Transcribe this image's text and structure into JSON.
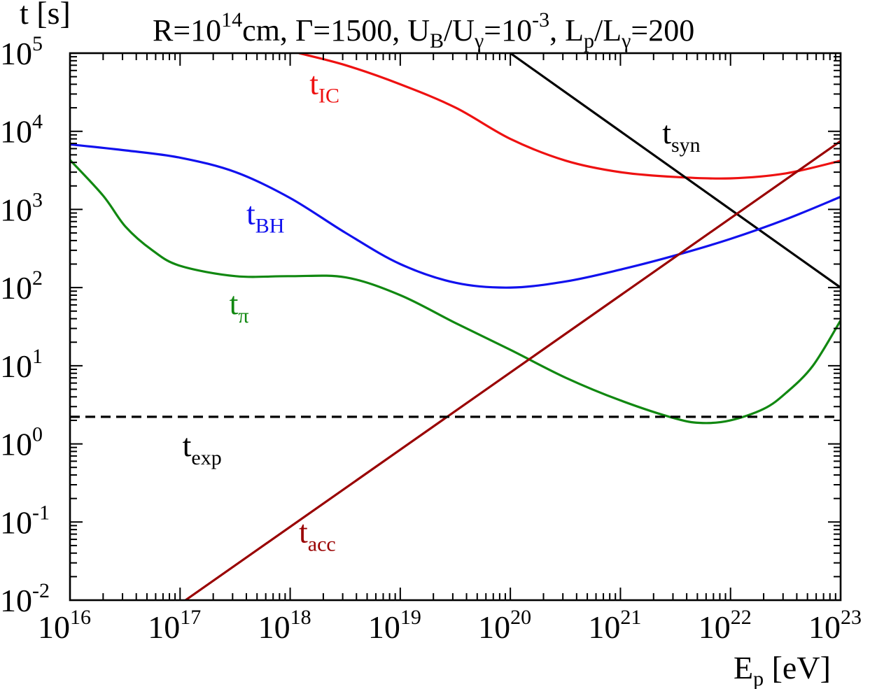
{
  "chart_data": {
    "type": "line",
    "title": {
      "R": "R=10",
      "R_exp": "14",
      "R_unit": "cm, ",
      "Gamma": "Γ=1500, ",
      "UB_base": "U",
      "UB_sub": "B",
      "slash1": "/",
      "Ug_base": "U",
      "Ug_sub": "γ",
      "U_ratio": "=10",
      "U_ratio_exp": "-3",
      "comma": ", ",
      "Lp_base": "L",
      "Lp_sub": "p",
      "slash2": "/",
      "Lg_base": "L",
      "Lg_sub": "γ",
      "L_ratio": "=200"
    },
    "ylabel": "t [s]",
    "xlabel": {
      "base": "E",
      "sub": "p",
      "unit": " [eV]"
    },
    "x_scale": "log",
    "y_scale": "log",
    "xlim": [
      1e+16,
      1e+23
    ],
    "ylim": [
      0.01,
      100000
    ],
    "x_ticks": [
      {
        "base": "10",
        "exp": "16"
      },
      {
        "base": "10",
        "exp": "17"
      },
      {
        "base": "10",
        "exp": "18"
      },
      {
        "base": "10",
        "exp": "19"
      },
      {
        "base": "10",
        "exp": "20"
      },
      {
        "base": "10",
        "exp": "21"
      },
      {
        "base": "10",
        "exp": "22"
      },
      {
        "base": "10",
        "exp": "23"
      }
    ],
    "y_ticks": [
      {
        "base": "10",
        "exp": "-2"
      },
      {
        "base": "10",
        "exp": "-1"
      },
      {
        "base": "10",
        "exp": "0"
      },
      {
        "base": "10",
        "exp": "1"
      },
      {
        "base": "10",
        "exp": "2"
      },
      {
        "base": "10",
        "exp": "3"
      },
      {
        "base": "10",
        "exp": "4"
      },
      {
        "base": "10",
        "exp": "5"
      }
    ],
    "grid": false,
    "series": [
      {
        "name": "t_IC",
        "label_base": "t",
        "label_sub": "IC",
        "color": "#ee1111",
        "dash": false,
        "points": [
          [
            1.2e+18,
            100000.0
          ],
          [
            3.2e+18,
            70000
          ],
          [
            1e+19,
            40000
          ],
          [
            3.2e+19,
            20000
          ],
          [
            1e+20,
            8000
          ],
          [
            3.2e+20,
            4200
          ],
          [
            1e+21,
            3000
          ],
          [
            3.2e+21,
            2600
          ],
          [
            1e+22,
            2500
          ],
          [
            3.2e+22,
            2900
          ],
          [
            1e+23,
            4200
          ]
        ]
      },
      {
        "name": "t_syn",
        "label_base": "t",
        "label_sub": "syn",
        "color": "#000000",
        "dash": false,
        "points": [
          [
            1e+20,
            100000.0
          ],
          [
            1e+23,
            100
          ]
        ]
      },
      {
        "name": "t_BH",
        "label_base": "t",
        "label_sub": "BH",
        "color": "#1111ee",
        "dash": false,
        "points": [
          [
            1e+16,
            6800
          ],
          [
            3.2e+16,
            5700
          ],
          [
            1e+17,
            4600
          ],
          [
            3.2e+17,
            3000
          ],
          [
            1e+18,
            1400
          ],
          [
            3.2e+18,
            500
          ],
          [
            1e+19,
            200
          ],
          [
            3.2e+19,
            115
          ],
          [
            1e+20,
            100
          ],
          [
            3.2e+20,
            120
          ],
          [
            1e+21,
            170
          ],
          [
            3.2e+21,
            260
          ],
          [
            1e+22,
            420
          ],
          [
            3.2e+22,
            750
          ],
          [
            1e+23,
            1450
          ]
        ]
      },
      {
        "name": "t_π",
        "label_base": "t",
        "label_sub": "π",
        "color": "#118811",
        "dash": false,
        "points": [
          [
            1e+16,
            4300
          ],
          [
            2e+16,
            1500
          ],
          [
            3.2e+16,
            600
          ],
          [
            5.6e+16,
            300
          ],
          [
            1e+17,
            190
          ],
          [
            3.2e+17,
            140
          ],
          [
            1e+18,
            140
          ],
          [
            3.2e+18,
            135
          ],
          [
            1e+19,
            80
          ],
          [
            3.2e+19,
            35
          ],
          [
            1e+20,
            16
          ],
          [
            3.2e+20,
            7
          ],
          [
            1e+21,
            3.6
          ],
          [
            3.2e+21,
            2.1
          ],
          [
            5.6e+21,
            1.85
          ],
          [
            1e+22,
            2.0
          ],
          [
            2e+22,
            2.8
          ],
          [
            3.2e+22,
            4.5
          ],
          [
            5.6e+22,
            10
          ],
          [
            1e+23,
            38
          ]
        ]
      },
      {
        "name": "t_acc",
        "label_base": "t",
        "label_sub": "acc",
        "color": "#990000",
        "dash": false,
        "points": [
          [
            1.12e+17,
            0.01
          ],
          [
            1e+23,
            7500
          ]
        ]
      },
      {
        "name": "t_exp",
        "label_base": "t",
        "label_sub": "exp",
        "color": "#000000",
        "dash": true,
        "points": [
          [
            1e+16,
            2.22
          ],
          [
            1e+23,
            2.22
          ]
        ]
      }
    ],
    "annotations": [
      {
        "series": 0,
        "x": 1.5e+18,
        "y": 30000
      },
      {
        "series": 1,
        "x": 2.4e+21,
        "y": 7000
      },
      {
        "series": 2,
        "x": 4e+17,
        "y": 650
      },
      {
        "series": 3,
        "x": 2.8e+17,
        "y": 46
      },
      {
        "series": 4,
        "x": 1.2e+18,
        "y": 0.055
      },
      {
        "series": 5,
        "x": 1.05e+17,
        "y": 0.7
      }
    ]
  }
}
